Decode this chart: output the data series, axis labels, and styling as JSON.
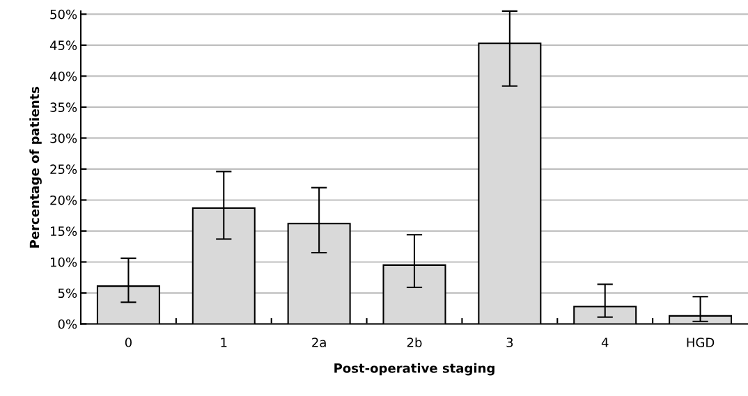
{
  "chart_data": {
    "type": "bar",
    "xlabel": "Post-operative staging",
    "ylabel": "Percentage of patients",
    "categories": [
      "0",
      "1",
      "2a",
      "2b",
      "3",
      "4",
      "HGD"
    ],
    "values": [
      6.1,
      18.7,
      16.2,
      9.5,
      45.3,
      2.8,
      1.3
    ],
    "errors": [
      [
        3.5,
        10.6
      ],
      [
        13.7,
        24.6
      ],
      [
        11.5,
        22.0
      ],
      [
        5.9,
        14.4
      ],
      [
        38.4,
        50.5
      ],
      [
        1.1,
        6.4
      ],
      [
        0.4,
        4.4
      ]
    ],
    "color": "#d9d9d9",
    "ylim": [
      0,
      50.5
    ],
    "yticks": [
      {
        "value": 0,
        "label": "0%"
      },
      {
        "value": 5,
        "label": "5%"
      },
      {
        "value": 10,
        "label": "10%"
      },
      {
        "value": 15,
        "label": "15%"
      },
      {
        "value": 20,
        "label": "20%"
      },
      {
        "value": 25,
        "label": "25%"
      },
      {
        "value": 30,
        "label": "30%"
      },
      {
        "value": 35,
        "label": "35%"
      },
      {
        "value": 40,
        "label": "40%"
      },
      {
        "value": 45,
        "label": "45%"
      },
      {
        "value": 50,
        "label": "50%"
      }
    ],
    "grid": "y"
  }
}
